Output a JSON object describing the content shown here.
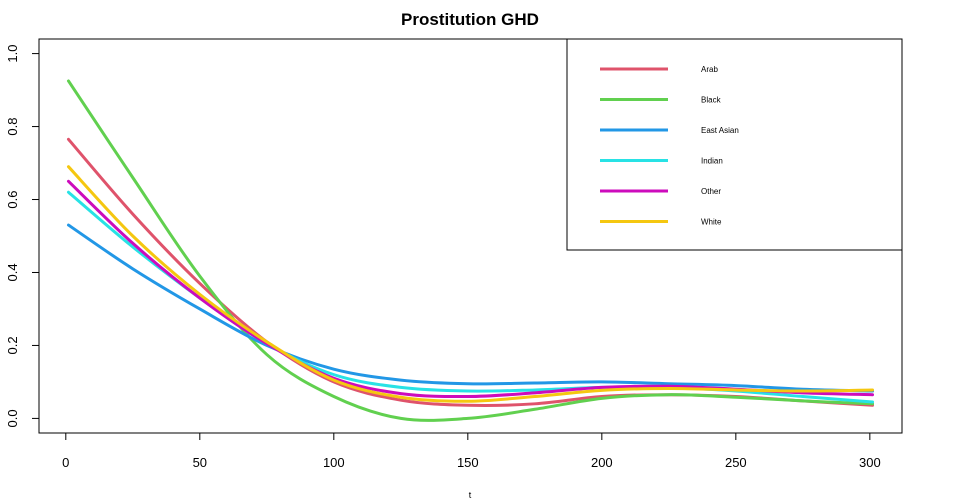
{
  "chart_data": {
    "type": "line",
    "title": "Prostitution GHD",
    "xlabel": "t",
    "ylabel": "",
    "xlim": [
      -10,
      312
    ],
    "ylim": [
      -0.04,
      1.04
    ],
    "xticks": [
      0,
      50,
      100,
      150,
      200,
      250,
      300
    ],
    "yticks": [
      0.0,
      0.2,
      0.4,
      0.6,
      0.8,
      1.0
    ],
    "xtick_labels": [
      "0",
      "50",
      "100",
      "150",
      "200",
      "250",
      "300"
    ],
    "ytick_labels": [
      "0.0",
      "0.2",
      "0.4",
      "0.6",
      "0.8",
      "1.0"
    ],
    "grid": false,
    "legend_position": "top-right",
    "x": [
      1,
      25,
      50,
      75,
      100,
      125,
      150,
      175,
      200,
      225,
      250,
      275,
      301
    ],
    "series": [
      {
        "name": "Arab",
        "color": "#DF536B",
        "values": [
          0.765,
          0.56,
          0.37,
          0.21,
          0.1,
          0.05,
          0.036,
          0.04,
          0.06,
          0.065,
          0.06,
          0.048,
          0.036
        ]
      },
      {
        "name": "Black",
        "color": "#61D04F",
        "values": [
          0.925,
          0.66,
          0.39,
          0.175,
          0.06,
          0.0,
          0.0,
          0.025,
          0.055,
          0.065,
          0.058,
          0.048,
          0.04
        ]
      },
      {
        "name": "East Asian",
        "color": "#2297E6",
        "values": [
          0.53,
          0.41,
          0.3,
          0.2,
          0.135,
          0.105,
          0.095,
          0.097,
          0.1,
          0.095,
          0.09,
          0.08,
          0.075
        ]
      },
      {
        "name": "Indian",
        "color": "#28E2E5",
        "values": [
          0.62,
          0.47,
          0.33,
          0.205,
          0.12,
          0.085,
          0.075,
          0.078,
          0.085,
          0.085,
          0.075,
          0.06,
          0.045
        ]
      },
      {
        "name": "Other",
        "color": "#CD0BBC",
        "values": [
          0.65,
          0.48,
          0.33,
          0.205,
          0.11,
          0.068,
          0.06,
          0.07,
          0.085,
          0.088,
          0.08,
          0.07,
          0.065
        ]
      },
      {
        "name": "White",
        "color": "#F5C710",
        "values": [
          0.69,
          0.5,
          0.34,
          0.21,
          0.105,
          0.058,
          0.047,
          0.06,
          0.077,
          0.082,
          0.078,
          0.075,
          0.078
        ]
      }
    ]
  }
}
